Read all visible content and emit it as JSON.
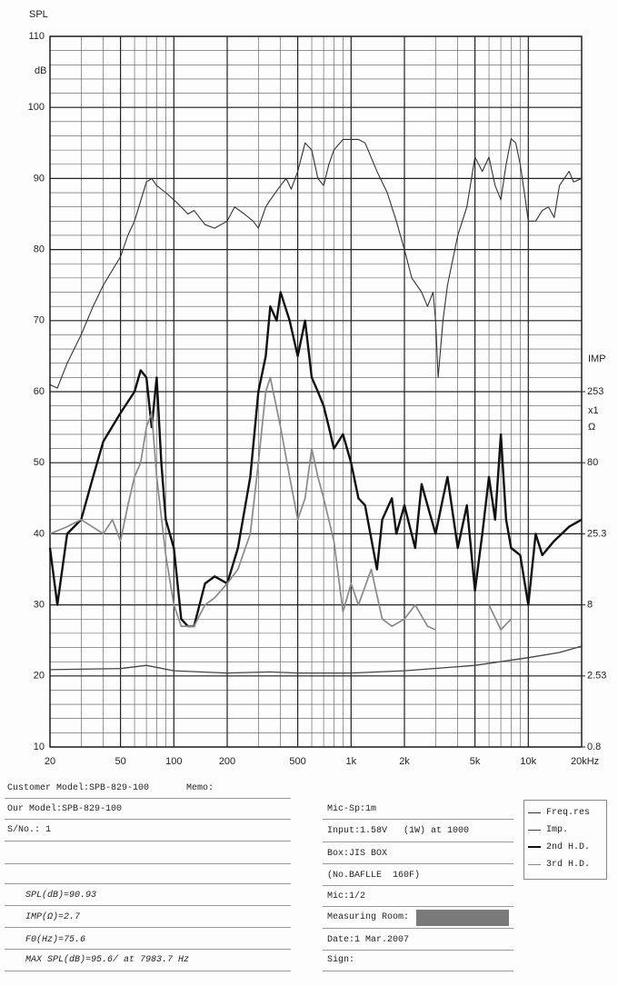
{
  "chart_data": {
    "type": "line",
    "y_label": "SPL",
    "y_unit": "dB",
    "y2_label": "IMP",
    "y2_multiplier": "x1",
    "y2_unit": "Ω",
    "xlim": [
      20,
      20000
    ],
    "log_x": true,
    "xticks": [
      20,
      50,
      100,
      200,
      500,
      {
        "value": 1000,
        "label": "1k"
      },
      {
        "value": 2000,
        "label": "2k"
      },
      {
        "value": 5000,
        "label": "5k"
      },
      {
        "value": 10000,
        "label": "10k"
      },
      {
        "value": 20000,
        "label": "20kHz"
      }
    ],
    "ylim": [
      10,
      110
    ],
    "yticks": [
      10,
      20,
      30,
      40,
      50,
      60,
      70,
      80,
      90,
      100,
      110
    ],
    "y2lim": [
      0.8,
      80000
    ],
    "log_y2": true,
    "y2ticks": [
      0.8,
      2.53,
      8,
      25.3,
      80,
      253
    ],
    "grid": true,
    "series": [
      {
        "name": "Freq.res",
        "color": "#333333",
        "x": [
          20,
          22,
          25,
          30,
          35,
          40,
          50,
          55,
          60,
          70,
          75,
          80,
          90,
          100,
          110,
          120,
          130,
          150,
          170,
          200,
          220,
          250,
          280,
          300,
          330,
          350,
          400,
          430,
          460,
          500,
          550,
          600,
          650,
          700,
          750,
          800,
          900,
          1000,
          1100,
          1200,
          1400,
          1600,
          1800,
          2000,
          2200,
          2500,
          2700,
          2900,
          3000,
          3100,
          3300,
          3500,
          4000,
          4500,
          5000,
          5500,
          6000,
          6500,
          7000,
          7500,
          8000,
          8500,
          9000,
          9500,
          10000,
          11000,
          12000,
          13000,
          14000,
          15000,
          17000,
          18000,
          20000
        ],
        "values": [
          61,
          60.5,
          64,
          68,
          72,
          75,
          79,
          82,
          84,
          89.5,
          90,
          89,
          88,
          87,
          86,
          85,
          85.5,
          83.5,
          83,
          84,
          86,
          85,
          84,
          83,
          86,
          87,
          89,
          90,
          88.5,
          91,
          95,
          94,
          90,
          89,
          92,
          94,
          95.5,
          95.5,
          95.5,
          95,
          91,
          88,
          84,
          80,
          76,
          74,
          72,
          74,
          70,
          62,
          70,
          75,
          82,
          86,
          93,
          91,
          93,
          89,
          87,
          92,
          95.6,
          95,
          92,
          88,
          84,
          84,
          85.5,
          86,
          84.5,
          89,
          91,
          89.5,
          90
        ]
      },
      {
        "name": "Imp.",
        "color": "#444444",
        "axis": "y2",
        "x": [
          20,
          50,
          70,
          100,
          200,
          350,
          500,
          1000,
          2000,
          5000,
          10000,
          15000,
          20000
        ],
        "values": [
          2.8,
          2.85,
          3.0,
          2.75,
          2.65,
          2.7,
          2.65,
          2.65,
          2.75,
          3.0,
          3.4,
          3.7,
          4.1
        ]
      },
      {
        "name": "2nd H.D.",
        "color": "#111111",
        "x": [
          20,
          22,
          25,
          30,
          35,
          40,
          50,
          60,
          65,
          70,
          75,
          80,
          85,
          90,
          100,
          110,
          120,
          130,
          150,
          170,
          200,
          230,
          270,
          300,
          330,
          350,
          380,
          400,
          450,
          500,
          550,
          600,
          650,
          700,
          750,
          800,
          900,
          1000,
          1100,
          1200,
          1400,
          1500,
          1700,
          1800,
          2000,
          2300,
          2500,
          2700,
          3000,
          3300,
          3500,
          4000,
          4500,
          5000,
          5500,
          6000,
          6500,
          7000,
          7500,
          8000,
          9000,
          10000,
          11000,
          12000,
          14000,
          17000,
          20000
        ],
        "values": [
          38,
          30,
          40,
          42,
          48,
          53,
          57,
          60,
          63,
          62,
          55,
          62,
          50,
          42,
          38,
          28,
          27,
          27,
          33,
          34,
          33,
          38,
          48,
          60,
          65,
          72,
          70,
          74,
          70,
          65,
          70,
          62,
          60,
          58,
          55,
          52,
          54,
          50,
          45,
          44,
          35,
          42,
          45,
          40,
          44,
          38,
          47,
          44,
          40,
          45,
          48,
          38,
          44,
          32,
          40,
          48,
          42,
          54,
          42,
          38,
          37,
          30,
          40,
          37,
          39,
          41,
          42
        ]
      },
      {
        "name": "3rd H.D.",
        "color": "#8a8a8a",
        "x": [
          20,
          25,
          30,
          40,
          45,
          50,
          55,
          60,
          65,
          70,
          75,
          80,
          90,
          100,
          110,
          130,
          150,
          170,
          200,
          230,
          270,
          300,
          330,
          350,
          400,
          450,
          500,
          550,
          600,
          650,
          700,
          800,
          900,
          1000,
          1100,
          1300,
          1500,
          1700,
          2000,
          2300,
          2700,
          3000,
          3500,
          6000,
          7000,
          8000
        ],
        "values": [
          40,
          41,
          42,
          40,
          42,
          39,
          44,
          48,
          50,
          55,
          57,
          48,
          37,
          30,
          27,
          27,
          30,
          31,
          33,
          35,
          40,
          50,
          60,
          62,
          55,
          48,
          42,
          45,
          52,
          48,
          45,
          39,
          29,
          33,
          30,
          35,
          28,
          27,
          28,
          30,
          27,
          26.5,
          null,
          30,
          26.5,
          28
        ]
      }
    ]
  },
  "form": {
    "customer_model": "Customer Model:SPB-829-100",
    "memo": "Memo:",
    "our_model": "Our Model:SPB-829-100",
    "serial": "S/No.: 1",
    "spl": "SPL(dB)=90.93",
    "imp": "IMP(Ω)=2.7",
    "f0": "F0(Hz)=75.6",
    "max_spl": "MAX SPL(dB)=95.6/ at 7983.7 Hz",
    "mic_sp": "Mic-Sp:1m",
    "input": "Input:1.58V   (1W) at 1000",
    "box": "Box:JIS BOX",
    "baffle": "(No.BAFLLE  160F)",
    "mic": "Mic:1/2",
    "room": "Measuring Room:",
    "date": "Date:1 Mar.2007",
    "sign": "Sign:"
  }
}
